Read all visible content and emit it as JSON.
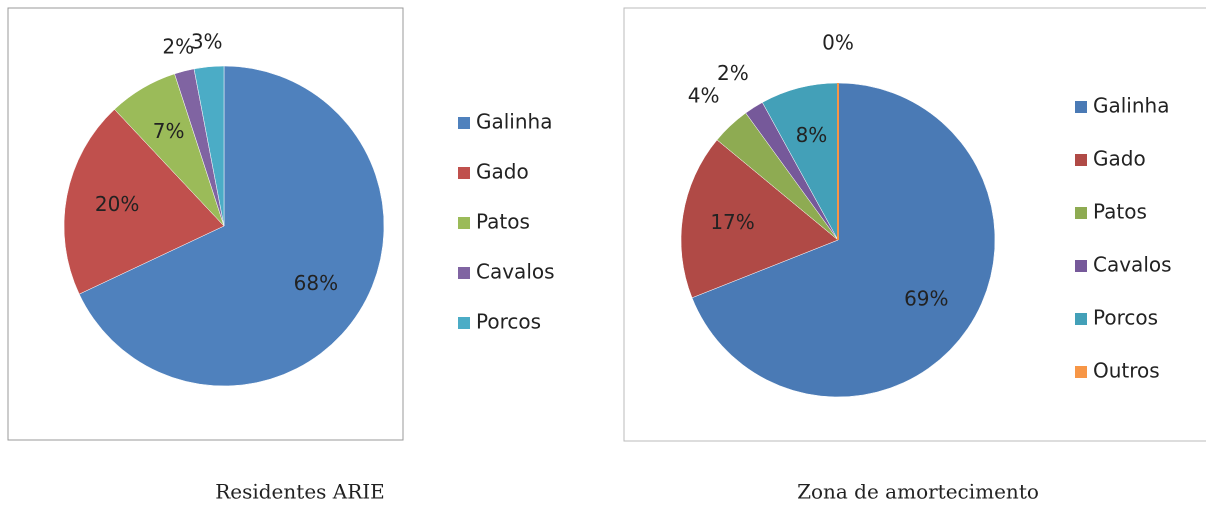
{
  "chart_data": [
    {
      "type": "pie",
      "title": "Residentes ARIE",
      "categories": [
        "Galinha",
        "Gado",
        "Patos",
        "Cavalos",
        "Porcos"
      ],
      "values": [
        68,
        20,
        7,
        2,
        3
      ],
      "value_labels": [
        "68%",
        "20%",
        "7%",
        "2%",
        "3%"
      ],
      "colors": [
        "#4f81bd",
        "#c0504d",
        "#9bbb59",
        "#8064a2",
        "#4bacc6"
      ],
      "legend": "right"
    },
    {
      "type": "pie",
      "title": "Zona de amortecimento",
      "categories": [
        "Galinha",
        "Gado",
        "Patos",
        "Cavalos",
        "Porcos",
        "Outros"
      ],
      "values": [
        69,
        17,
        4,
        2,
        8,
        0
      ],
      "value_labels": [
        "69%",
        "17%",
        "4%",
        "2%",
        "8%",
        "0%"
      ],
      "colors": [
        "#4a7ab5",
        "#b04a46",
        "#8eab52",
        "#76599a",
        "#43a0b8",
        "#f79646"
      ],
      "legend": "right"
    }
  ]
}
